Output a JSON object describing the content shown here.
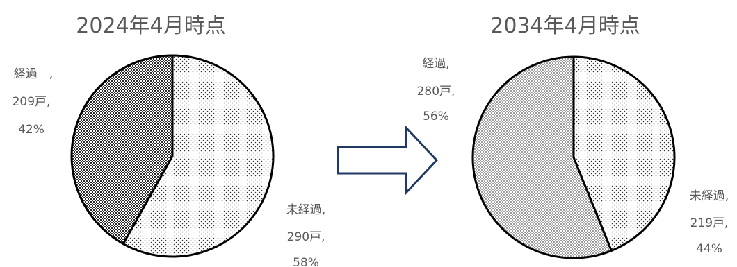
{
  "chart_data": [
    {
      "type": "pie",
      "title": "2024年4月時点",
      "slices": [
        {
          "category": "未経過",
          "households": 290,
          "percent": 58,
          "pattern": "sparse-dots",
          "label_lines": [
            "未経過,",
            "290戸,",
            "58%"
          ]
        },
        {
          "category": "経過",
          "households": 209,
          "percent": 42,
          "pattern": "dense-check",
          "label_lines": [
            "経過　,",
            "209戸,",
            "42%"
          ]
        }
      ]
    },
    {
      "type": "pie",
      "title": "2034年4月時点",
      "slices": [
        {
          "category": "未経過",
          "households": 219,
          "percent": 44,
          "pattern": "sparse-dots",
          "label_lines": [
            "未経過,",
            "219戸,",
            "44%"
          ]
        },
        {
          "category": "経過",
          "households": 280,
          "percent": 56,
          "pattern": "medium-dots",
          "label_lines": [
            "経過,",
            "280戸,",
            "56%"
          ]
        }
      ]
    }
  ],
  "colors": {
    "text": "#595959",
    "outline": "#000000",
    "arrow": "#1f3864"
  },
  "arrow_icon": "right-arrow-outline-icon"
}
